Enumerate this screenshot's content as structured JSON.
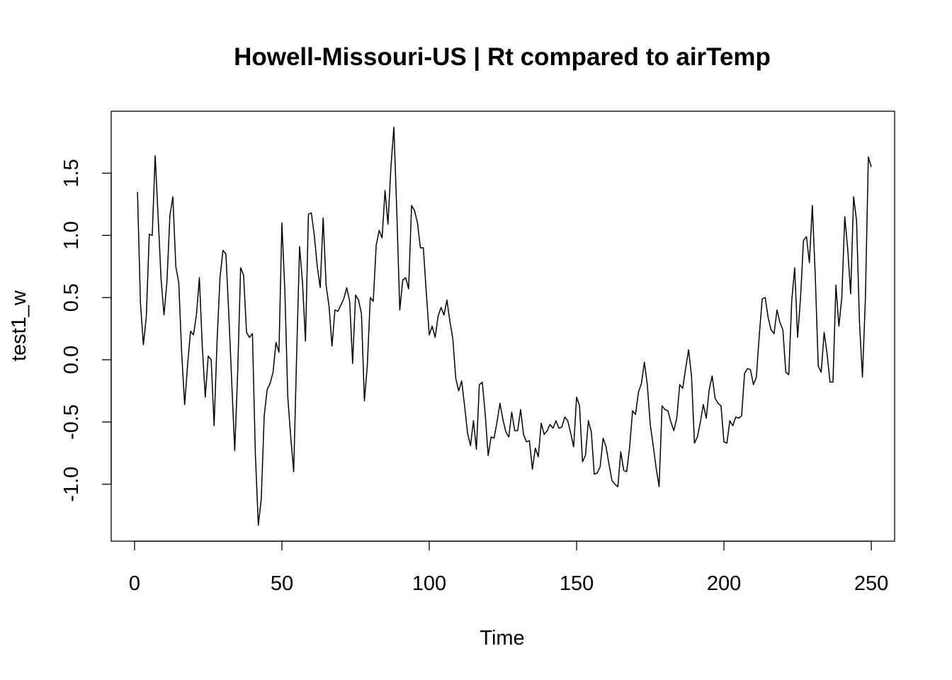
{
  "chart_data": {
    "type": "line",
    "title": "Howell-Missouri-US | Rt compared to airTemp",
    "xlabel": "Time",
    "ylabel": "test1_w",
    "xlim": [
      -7.92,
      257.92
    ],
    "ylim": [
      -1.458,
      1.998
    ],
    "x_ticks": [
      0,
      50,
      100,
      150,
      200,
      250
    ],
    "x_tick_labels": [
      "0",
      "50",
      "100",
      "150",
      "200",
      "250"
    ],
    "y_ticks": [
      -1.0,
      -0.5,
      0.0,
      0.5,
      1.0,
      1.5
    ],
    "y_tick_labels": [
      "-1.0",
      "-0.5",
      "0.0",
      "0.5",
      "1.0",
      "1.5"
    ],
    "grid": false,
    "legend": "none",
    "line_color": "#000000",
    "x_start": 1,
    "values": [
      1.35,
      0.46,
      0.12,
      0.35,
      1.01,
      1.0,
      1.64,
      1.15,
      0.65,
      0.36,
      0.63,
      1.16,
      1.31,
      0.75,
      0.62,
      0.05,
      -0.36,
      -0.04,
      0.23,
      0.2,
      0.36,
      0.66,
      0.1,
      -0.3,
      0.03,
      0.0,
      -0.53,
      0.15,
      0.66,
      0.88,
      0.85,
      0.36,
      -0.19,
      -0.73,
      -0.1,
      0.74,
      0.68,
      0.22,
      0.18,
      0.21,
      -0.76,
      -1.33,
      -1.12,
      -0.45,
      -0.24,
      -0.19,
      -0.1,
      0.14,
      0.06,
      1.1,
      0.56,
      -0.3,
      -0.62,
      -0.9,
      0.03,
      0.91,
      0.62,
      0.15,
      1.17,
      1.18,
      1.0,
      0.75,
      0.58,
      1.14,
      0.6,
      0.43,
      0.11,
      0.4,
      0.39,
      0.44,
      0.49,
      0.58,
      0.47,
      -0.03,
      0.52,
      0.48,
      0.37,
      -0.33,
      -0.04,
      0.5,
      0.47,
      0.92,
      1.04,
      0.98,
      1.36,
      1.09,
      1.55,
      1.87,
      1.18,
      0.4,
      0.64,
      0.66,
      0.57,
      1.24,
      1.2,
      1.1,
      0.9,
      0.9,
      0.54,
      0.2,
      0.27,
      0.18,
      0.35,
      0.42,
      0.36,
      0.48,
      0.31,
      0.17,
      -0.15,
      -0.25,
      -0.17,
      -0.37,
      -0.59,
      -0.69,
      -0.49,
      -0.72,
      -0.2,
      -0.18,
      -0.44,
      -0.77,
      -0.62,
      -0.63,
      -0.5,
      -0.35,
      -0.48,
      -0.58,
      -0.62,
      -0.42,
      -0.57,
      -0.57,
      -0.4,
      -0.6,
      -0.66,
      -0.65,
      -0.88,
      -0.71,
      -0.78,
      -0.51,
      -0.6,
      -0.57,
      -0.52,
      -0.55,
      -0.49,
      -0.55,
      -0.54,
      -0.46,
      -0.49,
      -0.59,
      -0.7,
      -0.3,
      -0.37,
      -0.82,
      -0.77,
      -0.49,
      -0.58,
      -0.92,
      -0.91,
      -0.86,
      -0.63,
      -0.7,
      -0.84,
      -0.97,
      -1.0,
      -1.02,
      -0.74,
      -0.89,
      -0.9,
      -0.7,
      -0.41,
      -0.44,
      -0.26,
      -0.19,
      -0.02,
      -0.2,
      -0.52,
      -0.69,
      -0.87,
      -1.02,
      -0.37,
      -0.4,
      -0.41,
      -0.5,
      -0.57,
      -0.47,
      -0.2,
      -0.23,
      -0.07,
      0.08,
      -0.13,
      -0.67,
      -0.62,
      -0.5,
      -0.36,
      -0.47,
      -0.24,
      -0.13,
      -0.31,
      -0.35,
      -0.37,
      -0.66,
      -0.67,
      -0.49,
      -0.53,
      -0.46,
      -0.47,
      -0.45,
      -0.11,
      -0.07,
      -0.08,
      -0.2,
      -0.14,
      0.2,
      0.49,
      0.5,
      0.34,
      0.24,
      0.21,
      0.4,
      0.3,
      0.24,
      -0.1,
      -0.12,
      0.47,
      0.74,
      0.18,
      0.5,
      0.96,
      0.99,
      0.78,
      1.24,
      0.67,
      -0.05,
      -0.1,
      0.22,
      0.05,
      -0.18,
      -0.18,
      0.6,
      0.27,
      0.5,
      1.15,
      0.89,
      0.53,
      1.31,
      1.12,
      0.3,
      -0.14,
      0.49,
      1.63,
      1.55
    ]
  }
}
